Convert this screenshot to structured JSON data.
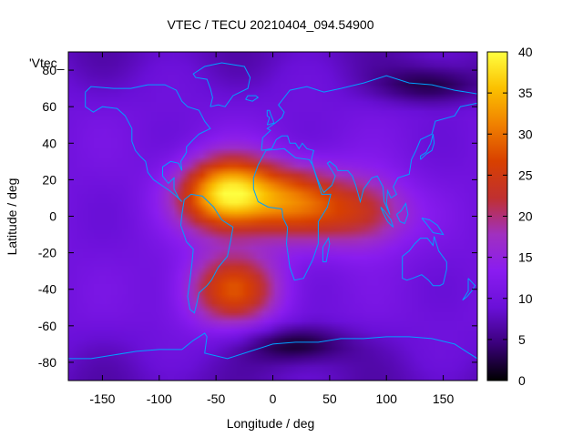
{
  "chart_data": {
    "type": "heatmap",
    "title": "VTEC / TECU 20210404_094.54900",
    "xlabel": "Longitude / deg",
    "ylabel": "Latitude / deg",
    "legend_key": "'Vtec_",
    "xlim": [
      -180,
      180
    ],
    "ylim": [
      -90,
      90
    ],
    "xticks": [
      "-150",
      "-100",
      "-50",
      "0",
      "50",
      "100",
      "150"
    ],
    "yticks": [
      "-80",
      "-60",
      "-40",
      "-20",
      "0",
      "20",
      "40",
      "60",
      "80"
    ],
    "colorbar": {
      "range": [
        0,
        40
      ],
      "ticks": [
        "0",
        "5",
        "10",
        "15",
        "20",
        "25",
        "30",
        "35",
        "40"
      ],
      "colormap": [
        "#000000",
        "#3a007a",
        "#6a10d8",
        "#8a1cf0",
        "#a030c0",
        "#c03030",
        "#d84000",
        "#f08000",
        "#fbc000",
        "#ffff40"
      ]
    },
    "field": {
      "background_vtec": 10,
      "features": [
        {
          "label": "equatorial crest",
          "lon": -40,
          "lat": 12,
          "peak_vtec": 39
        },
        {
          "label": "southern anomaly",
          "lon": -35,
          "lat": -40,
          "peak_vtec": 27
        },
        {
          "label": "africa band",
          "lon": 20,
          "lat": 8,
          "peak_vtec": 26
        },
        {
          "label": "indian ocean band",
          "lon": 80,
          "lat": 2,
          "peak_vtec": 23
        },
        {
          "label": "southern trough",
          "lon": 20,
          "lat": -70,
          "min_vtec": 2
        },
        {
          "label": "northern trough",
          "lon": 140,
          "lat": 72,
          "min_vtec": 3
        }
      ]
    },
    "colors": {
      "coastline": "#00a0ff",
      "frame": "#000000"
    }
  }
}
